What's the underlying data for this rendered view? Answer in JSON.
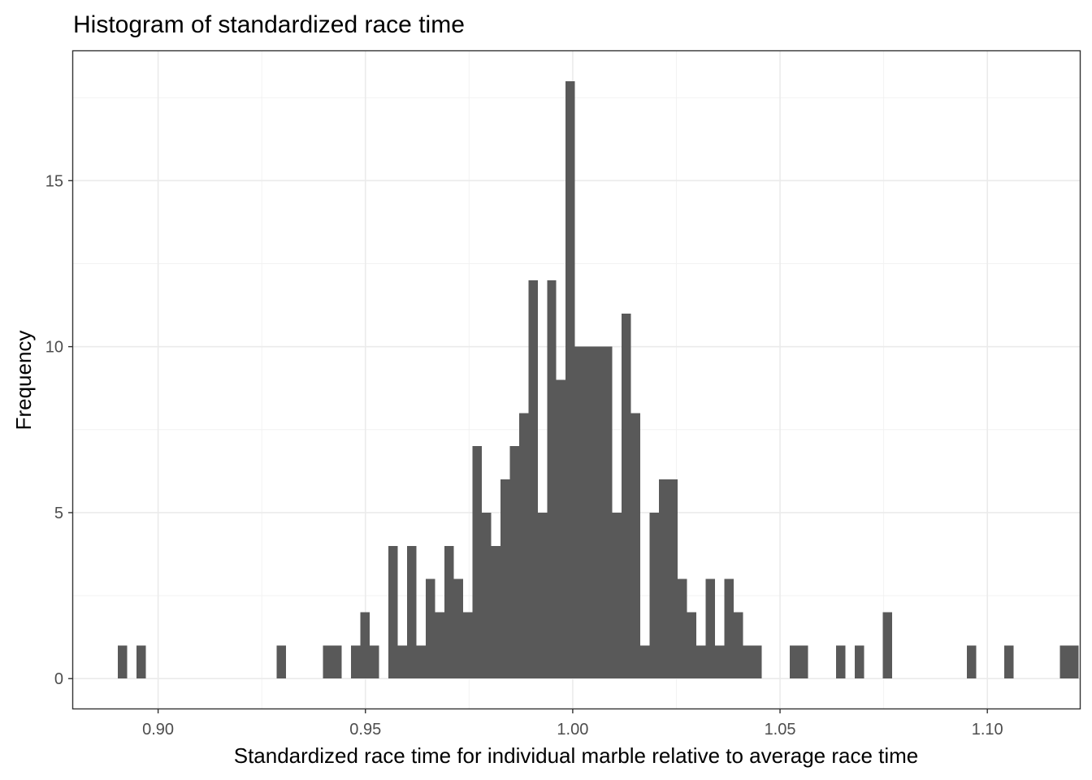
{
  "chart_data": {
    "type": "bar",
    "subtype": "histogram",
    "title": "Histogram of standardized race time",
    "xlabel": "Standardized race time for individual marble relative to average race time",
    "ylabel": "Frequency",
    "xlim": [
      0.8795,
      1.1225
    ],
    "ylim": [
      -0.9,
      18.9
    ],
    "x_ticks": [
      0.9,
      0.95,
      1.0,
      1.05,
      1.1
    ],
    "x_tick_labels": [
      "0.90",
      "0.95",
      "1.00",
      "1.05",
      "1.10"
    ],
    "y_ticks": [
      0,
      5,
      10,
      15
    ],
    "y_tick_labels": [
      "0",
      "5",
      "10",
      "15"
    ],
    "bin_width": 0.00225,
    "first_bin_start": 0.8903,
    "counts": [
      1,
      0,
      1,
      0,
      0,
      0,
      0,
      0,
      0,
      0,
      0,
      0,
      0,
      0,
      0,
      0,
      0,
      1,
      0,
      0,
      0,
      0,
      1,
      1,
      0,
      1,
      2,
      1,
      0,
      4,
      1,
      4,
      1,
      3,
      2,
      4,
      3,
      2,
      7,
      5,
      4,
      6,
      7,
      8,
      12,
      5,
      12,
      9,
      18,
      10,
      10,
      10,
      10,
      5,
      11,
      8,
      1,
      5,
      6,
      6,
      3,
      2,
      1,
      3,
      1,
      3,
      2,
      1,
      1,
      0,
      0,
      0,
      1,
      1,
      0,
      0,
      0,
      1,
      0,
      1,
      0,
      0,
      2,
      0,
      0,
      0,
      0,
      0,
      0,
      0,
      0,
      1,
      0,
      0,
      0,
      1,
      0,
      0,
      0,
      0,
      0,
      1,
      1
    ],
    "bar_color": "#595959",
    "grid": true,
    "theme": "bw"
  }
}
